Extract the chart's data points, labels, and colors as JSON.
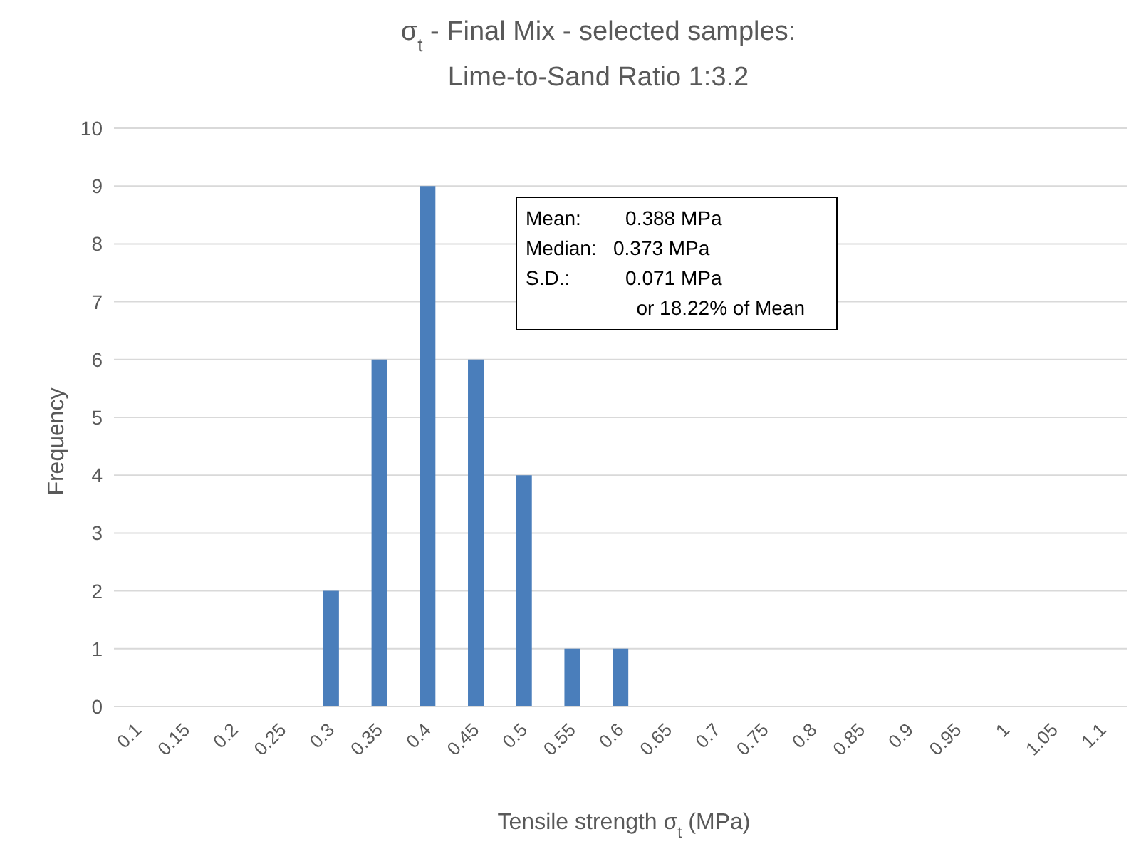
{
  "chart_data": {
    "type": "bar",
    "title": "σ$_{t}$ - Final Mix - selected samples:",
    "subtitle": "Lime-to-Sand Ratio 1:3.2",
    "xlabel": "Tensile strength σ$_{t}$ (MPa)",
    "ylabel": "Frequency",
    "categories": [
      "0.1",
      "0.15",
      "0.2",
      "0.25",
      "0.3",
      "0.35",
      "0.4",
      "0.45",
      "0.5",
      "0.55",
      "0.6",
      "0.65",
      "0.7",
      "0.75",
      "0.8",
      "0.85",
      "0.9",
      "0.95",
      "1",
      "1.05",
      "1.1"
    ],
    "values": [
      0,
      0,
      0,
      0,
      2,
      6,
      9,
      6,
      4,
      1,
      1,
      0,
      0,
      0,
      0,
      0,
      0,
      0,
      0,
      0,
      0
    ],
    "color": "#4a7ebb",
    "ylim": [
      0,
      10
    ],
    "yticks": [
      0,
      1,
      2,
      3,
      4,
      5,
      6,
      7,
      8,
      9,
      10
    ],
    "grid": "y",
    "legend": false,
    "annotations": [
      "Mean:        0.388 MPa",
      "Median:   0.373 MPa",
      "S.D.:          0.071 MPa",
      "or 18.22% of Mean"
    ]
  }
}
